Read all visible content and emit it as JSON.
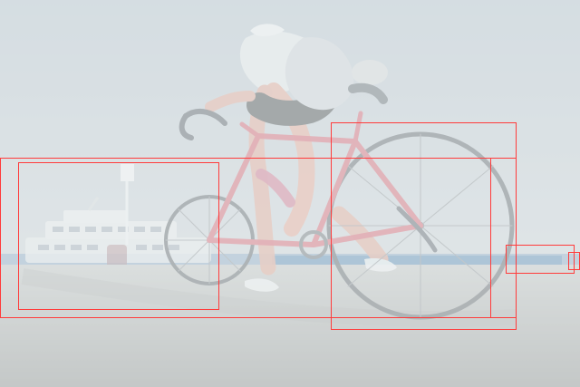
{
  "colors": {
    "sky": "#bfc9d1",
    "ground": "#a8aba9",
    "frame": "#d65a6a",
    "water": "#2d6fa8",
    "box_outline": "#ff3b3b"
  },
  "scene": {
    "description_tags": [
      "sky",
      "harbor",
      "ferry",
      "cyclist",
      "bicycle",
      "pavement"
    ]
  },
  "annotations": {
    "count": 6
  }
}
